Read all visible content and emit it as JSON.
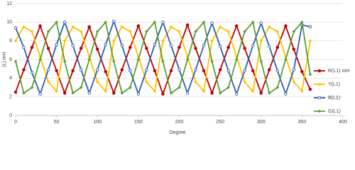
{
  "chart_data": {
    "type": "line",
    "x_label": "Degree",
    "y_label": "(L) mH",
    "x": [
      0,
      10,
      20,
      30,
      40,
      50,
      60,
      70,
      80,
      90,
      100,
      110,
      120,
      130,
      140,
      150,
      160,
      170,
      180,
      190,
      200,
      210,
      220,
      230,
      240,
      250,
      260,
      270,
      280,
      290,
      300,
      310,
      320,
      330,
      340,
      350,
      360
    ],
    "series": [
      {
        "name": "R(L1) mH",
        "color": "#c00000",
        "marker": "circle",
        "values": [
          2.5,
          4.9,
          7.3,
          9.6,
          7.2,
          4.8,
          2.4,
          4.8,
          7.2,
          9.5,
          7.1,
          4.7,
          2.4,
          4.9,
          7.3,
          9.6,
          7.2,
          4.8,
          2.3,
          4.8,
          7.3,
          9.7,
          7.2,
          4.8,
          2.4,
          4.9,
          7.3,
          9.6,
          7.2,
          4.8,
          2.4,
          4.9,
          7.3,
          9.6,
          7.1,
          4.7,
          2.8
        ]
      },
      {
        "name": "Y(L1)",
        "color": "#ffc000",
        "marker": "diamond",
        "values": [
          8.0,
          9.5,
          9.0,
          6.3,
          3.6,
          2.6,
          8.0,
          9.5,
          9.0,
          6.3,
          3.6,
          2.6,
          8.0,
          9.5,
          9.0,
          6.3,
          3.6,
          2.6,
          8.0,
          9.5,
          9.0,
          6.3,
          3.6,
          2.6,
          8.0,
          9.5,
          9.0,
          6.3,
          3.6,
          2.6,
          8.0,
          9.5,
          9.0,
          6.3,
          3.6,
          2.6,
          8.0
        ]
      },
      {
        "name": "B(L1)",
        "color": "#2f5ea8",
        "marker": "open-circle",
        "values": [
          9.4,
          7.3,
          4.6,
          2.3,
          4.9,
          7.6,
          10.0,
          7.5,
          4.9,
          2.4,
          4.9,
          7.6,
          10.1,
          7.5,
          4.8,
          2.3,
          4.9,
          7.6,
          10.0,
          7.5,
          4.9,
          2.4,
          4.9,
          7.5,
          9.9,
          7.4,
          4.8,
          2.3,
          4.8,
          7.5,
          9.9,
          7.4,
          4.8,
          2.3,
          4.9,
          9.7,
          9.5
        ]
      },
      {
        "name": "G(L1)",
        "color": "#5b9e2f",
        "marker": "diamond",
        "values": [
          5.8,
          2.4,
          3.0,
          6.0,
          9.0,
          10.0,
          5.8,
          2.4,
          3.0,
          6.0,
          9.0,
          10.0,
          5.8,
          2.4,
          3.0,
          6.0,
          9.0,
          10.0,
          5.8,
          2.4,
          3.0,
          6.0,
          9.0,
          10.0,
          5.8,
          2.4,
          3.0,
          6.0,
          9.0,
          10.0,
          5.8,
          2.4,
          3.0,
          6.0,
          9.0,
          10.0,
          4.4
        ]
      }
    ],
    "xlim": [
      0,
      400
    ],
    "xticks": [
      0,
      50,
      100,
      150,
      200,
      250,
      300,
      350,
      400
    ],
    "ylim": [
      0,
      12
    ],
    "yticks": [
      0,
      2,
      4,
      6,
      8,
      10,
      12
    ],
    "grid": true,
    "legend": "right"
  }
}
